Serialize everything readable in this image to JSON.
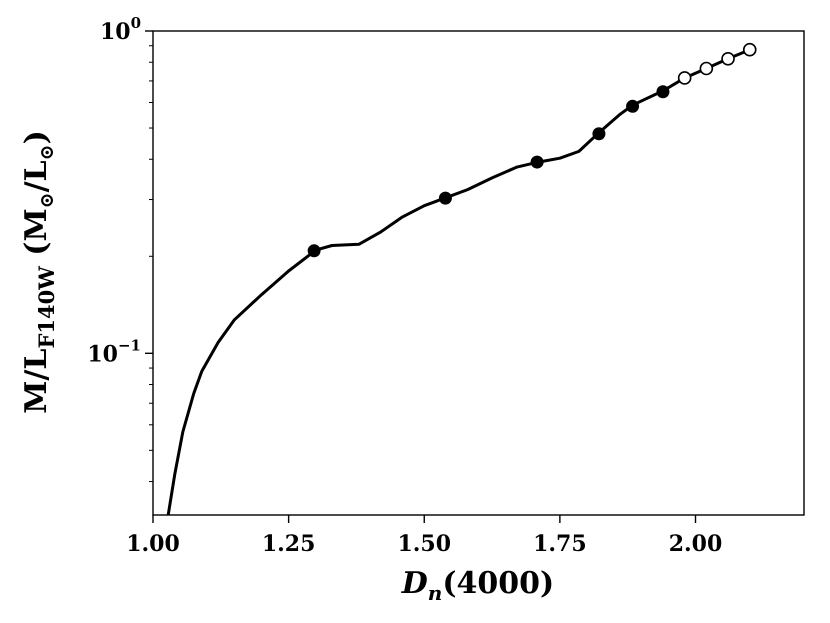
{
  "chart_data": {
    "type": "line",
    "title": "",
    "xlabel": {
      "main": "D",
      "sub": "n",
      "rest": "(4000)"
    },
    "ylabel": {
      "main": "M/L",
      "sub": "F140W",
      "rest_open": " (M",
      "sun1": "⊙",
      "mid": "/L",
      "sun2": "⊙",
      "rest_close": ")"
    },
    "x_scale": "linear",
    "y_scale": "log",
    "xlim": [
      1.0,
      2.2
    ],
    "ylim": [
      0.0315,
      1.0
    ],
    "x_ticks": [
      {
        "value": 1.0,
        "label": "1.00"
      },
      {
        "value": 1.25,
        "label": "1.25"
      },
      {
        "value": 1.5,
        "label": "1.50"
      },
      {
        "value": 1.75,
        "label": "1.75"
      },
      {
        "value": 2.0,
        "label": "2.00"
      }
    ],
    "y_major_ticks": [
      {
        "value": 0.1,
        "base": "10",
        "exponent": "−1"
      },
      {
        "value": 1.0,
        "base": "10",
        "exponent": "0"
      }
    ],
    "y_minor_ticks": [
      0.04,
      0.05,
      0.06,
      0.07,
      0.08,
      0.09,
      0.2,
      0.3,
      0.4,
      0.5,
      0.6,
      0.7,
      0.8,
      0.9
    ],
    "grid": false,
    "line_color": "#000000",
    "series": [
      {
        "kind": "line",
        "points": [
          [
            1.028,
            0.0315
          ],
          [
            1.04,
            0.042
          ],
          [
            1.055,
            0.057
          ],
          [
            1.075,
            0.075
          ],
          [
            1.09,
            0.088
          ],
          [
            1.12,
            0.108
          ],
          [
            1.15,
            0.127
          ],
          [
            1.2,
            0.152
          ],
          [
            1.25,
            0.18
          ],
          [
            1.3,
            0.209
          ],
          [
            1.33,
            0.216
          ],
          [
            1.38,
            0.218
          ],
          [
            1.42,
            0.238
          ],
          [
            1.46,
            0.265
          ],
          [
            1.5,
            0.287
          ],
          [
            1.54,
            0.304
          ],
          [
            1.58,
            0.322
          ],
          [
            1.625,
            0.35
          ],
          [
            1.67,
            0.378
          ],
          [
            1.71,
            0.392
          ],
          [
            1.75,
            0.403
          ],
          [
            1.785,
            0.423
          ],
          [
            1.82,
            0.48
          ],
          [
            1.86,
            0.55
          ],
          [
            1.885,
            0.59
          ],
          [
            1.94,
            0.652
          ],
          [
            1.98,
            0.715
          ],
          [
            2.02,
            0.765
          ],
          [
            2.06,
            0.82
          ],
          [
            2.1,
            0.875
          ]
        ]
      },
      {
        "kind": "filled-markers",
        "points": [
          [
            1.297,
            0.208
          ],
          [
            1.539,
            0.303
          ],
          [
            1.708,
            0.392
          ],
          [
            1.822,
            0.48
          ],
          [
            1.884,
            0.584
          ],
          [
            1.94,
            0.648
          ]
        ]
      },
      {
        "kind": "open-markers",
        "points": [
          [
            1.98,
            0.715
          ],
          [
            2.02,
            0.765
          ],
          [
            2.06,
            0.82
          ],
          [
            2.1,
            0.875
          ]
        ]
      }
    ]
  }
}
